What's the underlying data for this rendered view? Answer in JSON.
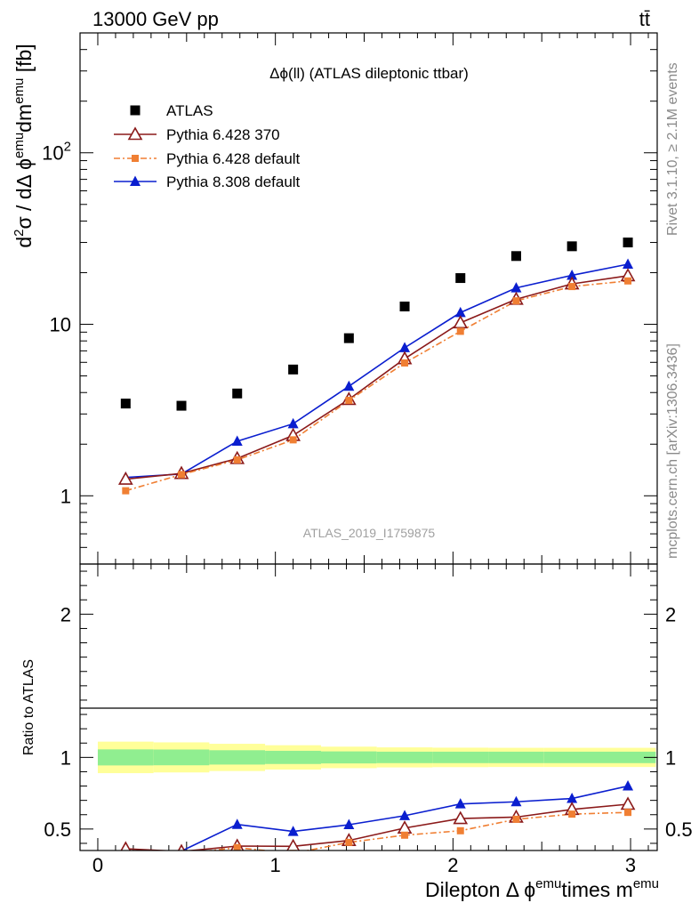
{
  "header": {
    "energy_label": "13000 GeV pp",
    "process_label": "tt̄"
  },
  "side_labels": {
    "rivet": "Rivet 3.1.10, ≥ 2.1M events",
    "mcplots": "mcplots.cern.ch [arXiv:1306.3436]"
  },
  "chart_data": [
    {
      "type": "scatter",
      "panel": "main",
      "title": "Δϕ(ll) (ATLAS dileptonic ttbar)",
      "analysis_label": "ATLAS_2019_I1759875",
      "ylabel": "d²σ / dΔ ϕ^emu dm^emu [fb]",
      "yscale": "log",
      "ylim": [
        0.4,
        500
      ],
      "xlim": [
        -0.1,
        3.15
      ],
      "yticks_labeled": [
        "1",
        "10",
        "10²"
      ],
      "legend_position": "top-left",
      "x": [
        0.157,
        0.471,
        0.785,
        1.1,
        1.414,
        1.728,
        2.042,
        2.356,
        2.67,
        2.985
      ],
      "series": [
        {
          "name": "ATLAS",
          "marker": "filled-square",
          "color": "#000000",
          "values": [
            3.45,
            3.35,
            3.95,
            5.45,
            8.3,
            12.7,
            18.6,
            25.0,
            28.5,
            30.0
          ]
        },
        {
          "name": "Pythia 6.428 370",
          "marker": "open-triangle",
          "color": "#8b1a1a",
          "line": "solid",
          "values": [
            1.25,
            1.35,
            1.65,
            2.25,
            3.65,
            6.3,
            10.2,
            14.0,
            17.2,
            19.2
          ]
        },
        {
          "name": "Pythia 6.428 default",
          "marker": "filled-square-small",
          "color": "#f07f33",
          "line": "dashdot",
          "values": [
            1.07,
            1.33,
            1.62,
            2.12,
            3.6,
            5.95,
            9.1,
            13.7,
            16.6,
            17.9
          ]
        },
        {
          "name": "Pythia 8.308 default",
          "marker": "filled-triangle",
          "color": "#0a1ecf",
          "line": "solid",
          "values": [
            1.28,
            1.34,
            2.08,
            2.63,
            4.35,
            7.3,
            11.7,
            16.3,
            19.3,
            22.4
          ]
        }
      ]
    },
    {
      "type": "line",
      "panel": "ratio",
      "ylabel": "Ratio to ATLAS",
      "xlabel": "Dilepton Δ ϕ^emu times m^emu",
      "ylim": [
        0.35,
        2.35
      ],
      "xlim": [
        -0.1,
        3.15
      ],
      "xticks": [
        "0",
        "1",
        "2",
        "3"
      ],
      "yticks": [
        "0.5",
        "1",
        "2"
      ],
      "band": {
        "x_edges": [
          0.0,
          0.314,
          0.628,
          0.942,
          1.257,
          1.571,
          1.885,
          2.199,
          2.513,
          2.827,
          3.142
        ],
        "inner": [
          0.056,
          0.055,
          0.05,
          0.046,
          0.042,
          0.04,
          0.04,
          0.04,
          0.04,
          0.04
        ],
        "outer": [
          0.11,
          0.105,
          0.095,
          0.085,
          0.075,
          0.07,
          0.068,
          0.067,
          0.067,
          0.067
        ],
        "inner_color": "#90ee90",
        "outer_color": "#ffff99"
      },
      "x": [
        0.157,
        0.471,
        0.785,
        1.1,
        1.414,
        1.728,
        2.042,
        2.356,
        2.67,
        2.985
      ],
      "series": [
        {
          "name": "Pythia 6.428 370",
          "marker": "open-triangle",
          "color": "#8b1a1a",
          "line": "solid",
          "values": [
            0.362,
            0.343,
            0.381,
            0.379,
            0.42,
            0.507,
            0.573,
            0.583,
            0.637,
            0.673
          ]
        },
        {
          "name": "Pythia 6.428 default",
          "marker": "filled-square-small",
          "color": "#f07f33",
          "line": "dashdot",
          "values": [
            0.31,
            0.327,
            0.37,
            0.33,
            0.407,
            0.457,
            0.488,
            0.568,
            0.604,
            0.616
          ]
        },
        {
          "name": "Pythia 8.308 default",
          "marker": "filled-triangle",
          "color": "#0a1ecf",
          "line": "solid",
          "values": [
            0.3,
            0.346,
            0.532,
            0.483,
            0.53,
            0.593,
            0.675,
            0.69,
            0.713,
            0.8
          ]
        }
      ]
    }
  ]
}
